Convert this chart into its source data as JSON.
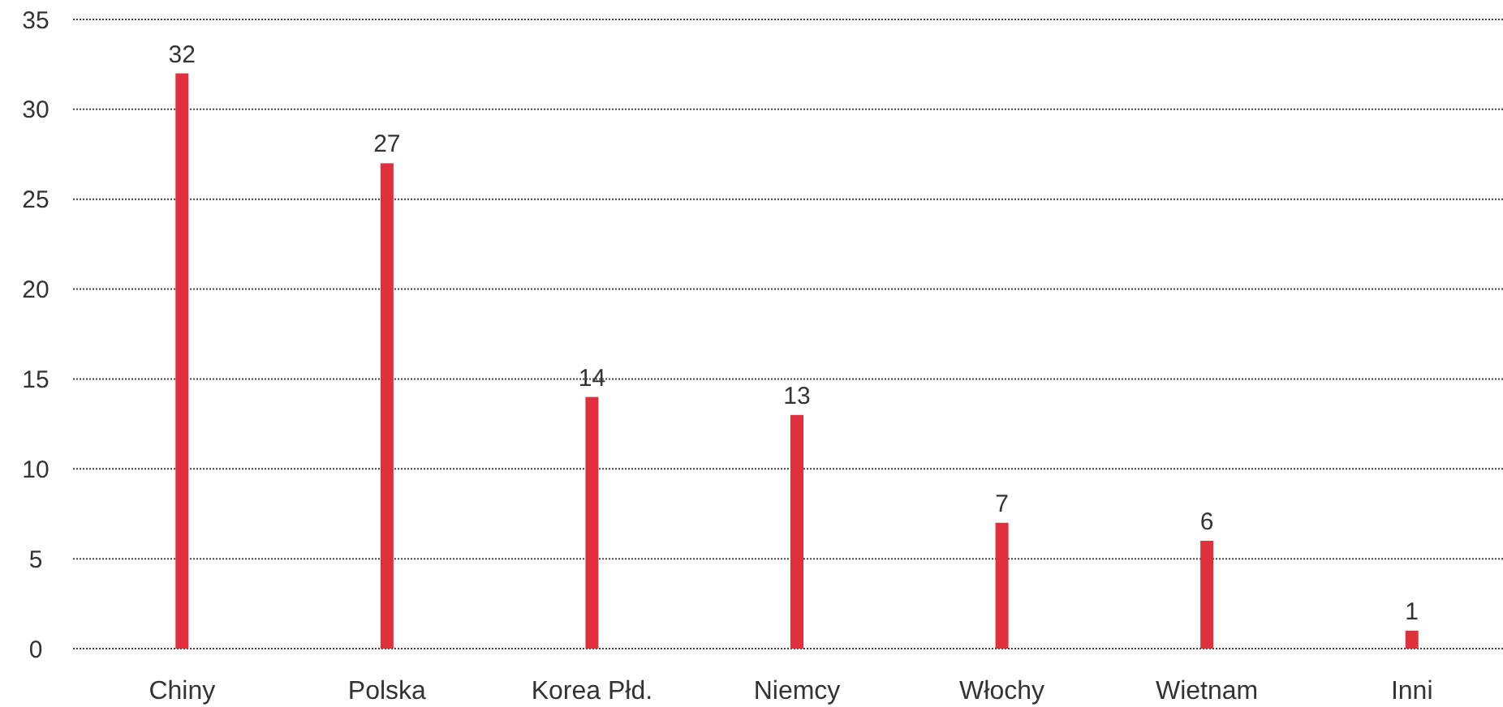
{
  "chart_data": {
    "type": "bar",
    "categories": [
      "Chiny",
      "Polska",
      "Korea Płd.",
      "Niemcy",
      "Włochy",
      "Wietnam",
      "Inni"
    ],
    "values": [
      32,
      27,
      14,
      13,
      7,
      6,
      1
    ],
    "color": "#e0303c",
    "ylim": [
      0,
      35
    ],
    "yticks": [
      0,
      5,
      10,
      15,
      20,
      25,
      30,
      35
    ],
    "grid": "y",
    "data_labels": true
  }
}
